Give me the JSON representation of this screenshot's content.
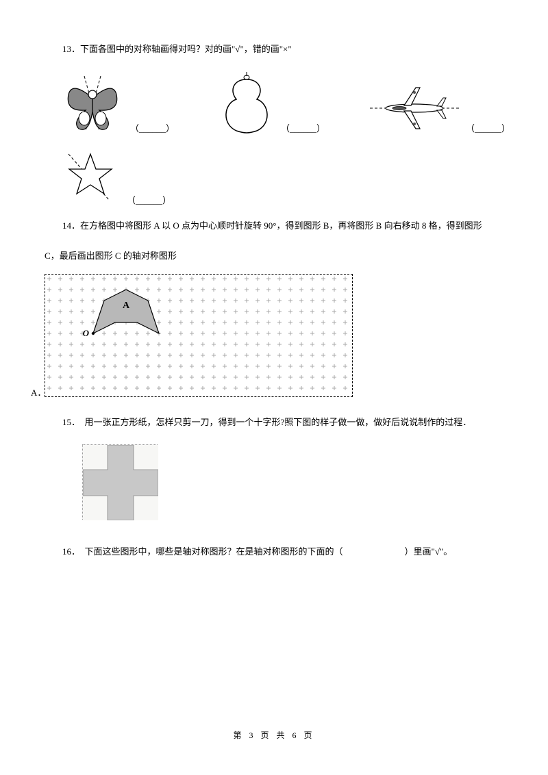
{
  "q13": {
    "number": "13",
    "text": "．下面各图中的对称轴画得对吗？对的画\"√\"，错的画\"×\"",
    "blank": "（______）"
  },
  "q14": {
    "number": "14",
    "text_line1": "．在方格图中将图形 A 以 O 点为中心顺时针旋转 90°，得到图形 B，再将图形 B 向右移动 8 格，得到图形",
    "text_line2": "C，最后画出图形 C 的轴对称图形",
    "label_a": "A．",
    "shape_label_a": "A",
    "shape_label_o": "O",
    "grid": {
      "cols": 28,
      "rows": 11,
      "cell_size": 16,
      "plus_color": "#aaaaaa",
      "shape_fill": "#b8b8b8",
      "shape_stroke": "#000000"
    }
  },
  "q15": {
    "number": "15",
    "text": "．　用一张正方形纸，怎样只剪一刀，得到一个十字形?照下图的样子做一做，做好后说说制作的过程．",
    "cross": {
      "fill": "#c8c8c8",
      "arm_ratio": 0.333
    }
  },
  "q16": {
    "number": "16",
    "text_prefix": "．　下面这些图形中，哪些是轴对称图形？在是轴对称图形的下面的（",
    "text_suffix": "）里画\"√\"。"
  },
  "footer": "第 3 页 共 6 页",
  "colors": {
    "text": "#000000",
    "bg": "#ffffff",
    "figure_stroke": "#000000",
    "figure_fill_dark": "#888888",
    "dashed": "#000000"
  }
}
